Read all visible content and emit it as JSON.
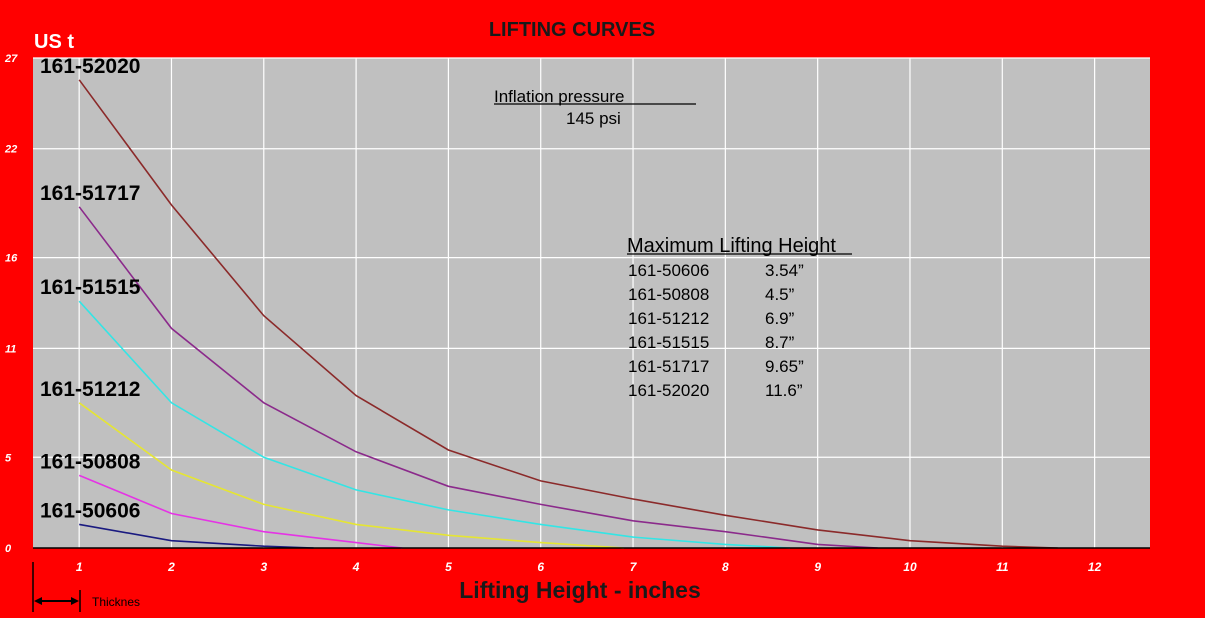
{
  "chart_data": {
    "type": "line",
    "title": "LIFTING CURVES",
    "unit_label": "US t",
    "xlabel": "Lifting Height  - inches",
    "x_ticks": [
      "1",
      "2",
      "3",
      "4",
      "5",
      "6",
      "7",
      "8",
      "9",
      "10",
      "11",
      "12"
    ],
    "y_ticks": [
      "0",
      "5",
      "11",
      "16",
      "22",
      "27"
    ],
    "xlim": [
      0.5,
      12.6
    ],
    "ylim": [
      0,
      27
    ],
    "grid": true,
    "annotations": {
      "pressure_title": "Inflation pressure",
      "pressure_value": "145 psi",
      "table_title": "Maximum Lifting Height",
      "table_rows": [
        {
          "model": "161-50606",
          "height": "3.54”"
        },
        {
          "model": "161-50808",
          "height": "4.5”"
        },
        {
          "model": "161-51212",
          "height": "6.9”"
        },
        {
          "model": "161-51515",
          "height": "8.7”"
        },
        {
          "model": "161-51717",
          "height": "9.65”"
        },
        {
          "model": "161-52020",
          "height": "11.6”"
        }
      ],
      "thickness_label": "Thicknes"
    },
    "series": [
      {
        "name": "161-52020",
        "color": "#8b2a2a",
        "x": [
          1,
          2,
          3,
          4,
          5,
          6,
          7,
          8,
          9,
          10,
          11,
          11.6
        ],
        "y": [
          25.8,
          18.9,
          12.8,
          8.4,
          5.4,
          3.7,
          2.7,
          1.8,
          1.0,
          0.4,
          0.1,
          0
        ]
      },
      {
        "name": "161-51717",
        "color": "#8b2a8b",
        "x": [
          1,
          2,
          3,
          4,
          5,
          6,
          7,
          8,
          9,
          9.65
        ],
        "y": [
          18.8,
          12.1,
          8.0,
          5.3,
          3.4,
          2.4,
          1.5,
          0.9,
          0.2,
          0
        ]
      },
      {
        "name": "161-51515",
        "color": "#33e5e5",
        "x": [
          1,
          2,
          3,
          4,
          5,
          6,
          7,
          8,
          8.7
        ],
        "y": [
          13.6,
          8.0,
          5.0,
          3.2,
          2.1,
          1.3,
          0.6,
          0.2,
          0
        ]
      },
      {
        "name": "161-51212",
        "color": "#e5e533",
        "x": [
          1,
          2,
          3,
          4,
          5,
          6,
          6.9
        ],
        "y": [
          8.0,
          4.3,
          2.4,
          1.3,
          0.7,
          0.3,
          0
        ]
      },
      {
        "name": "161-50808",
        "color": "#e533e5",
        "x": [
          1,
          2,
          3,
          4,
          4.5
        ],
        "y": [
          4.0,
          1.9,
          0.9,
          0.3,
          0
        ]
      },
      {
        "name": "161-50606",
        "color": "#1a1a80",
        "x": [
          1,
          2,
          3,
          3.54
        ],
        "y": [
          1.3,
          0.4,
          0.1,
          0
        ]
      }
    ]
  }
}
